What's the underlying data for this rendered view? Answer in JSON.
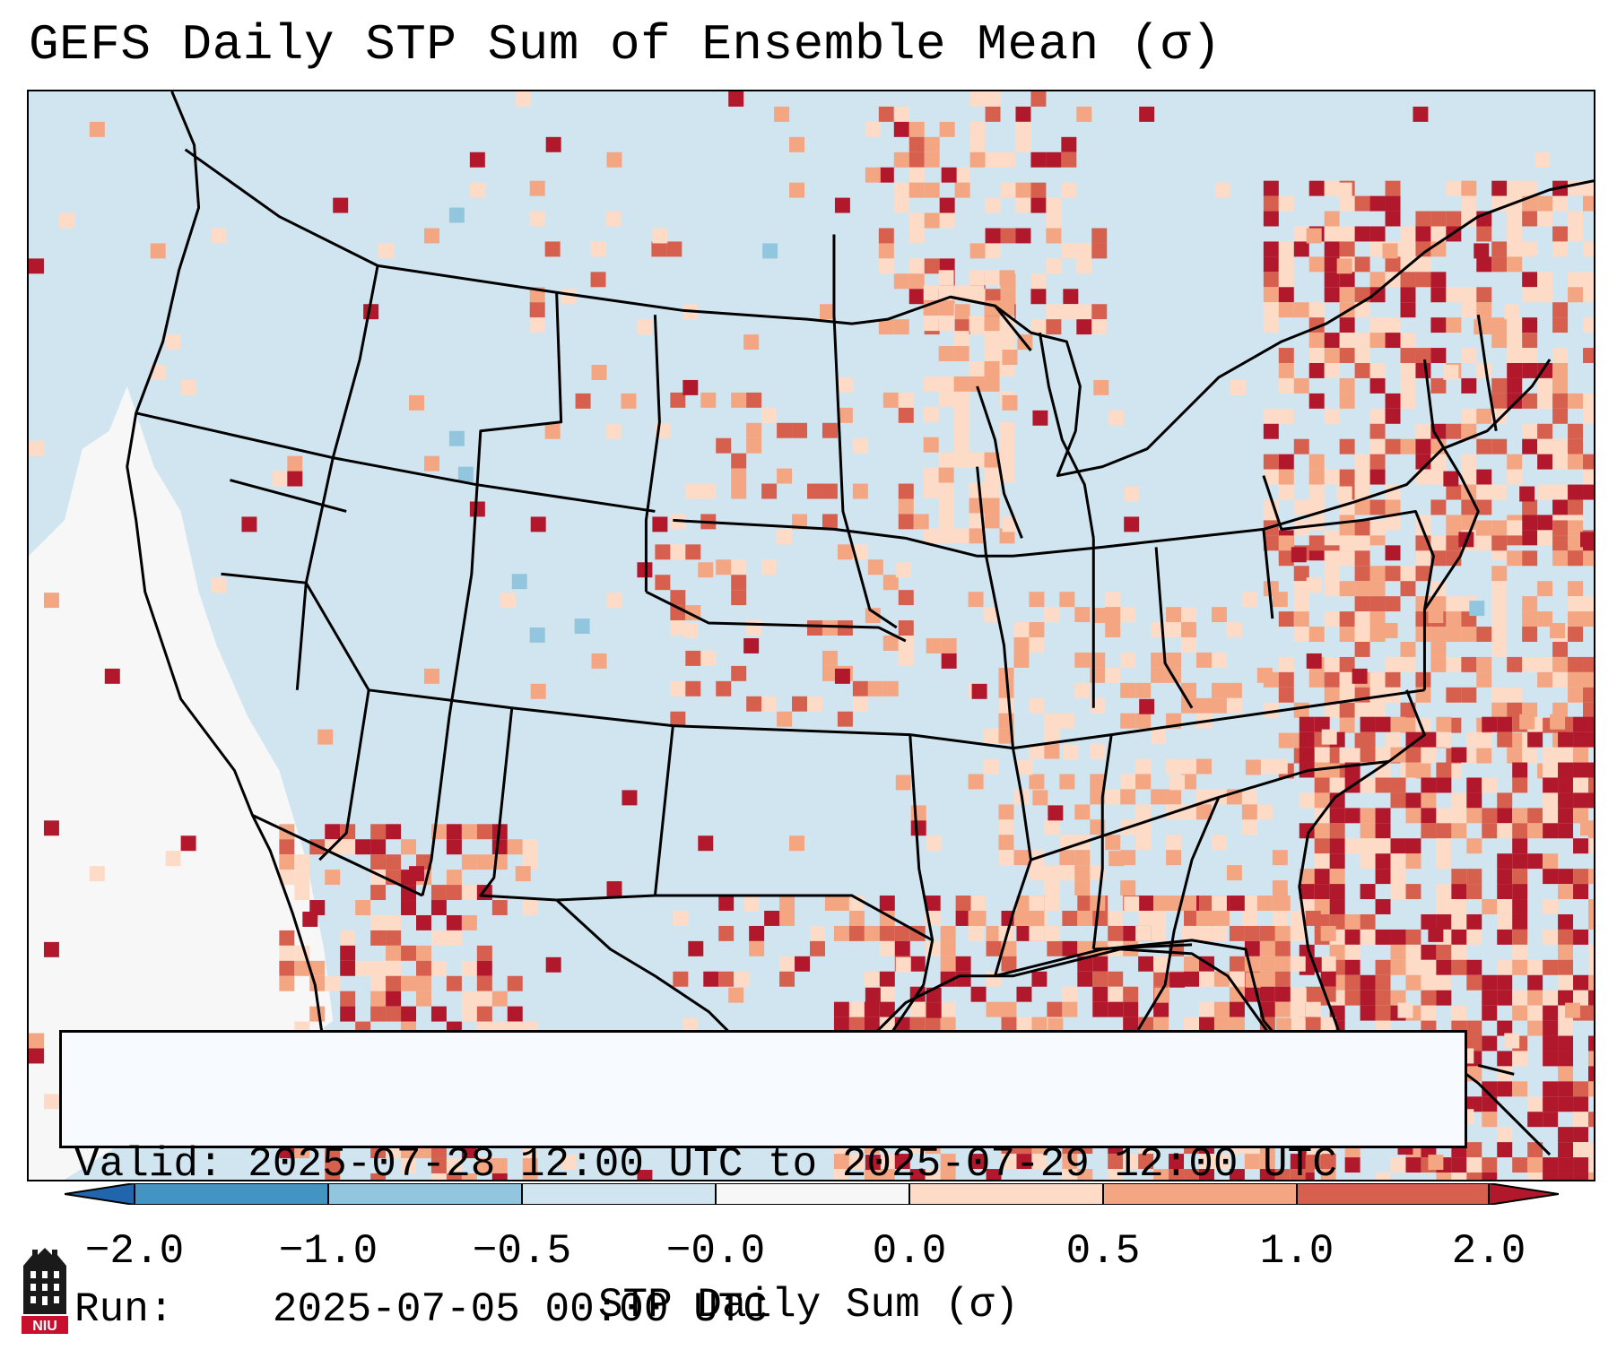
{
  "title": "GEFS Daily STP Sum of Ensemble Mean (σ)",
  "info": {
    "valid_label": "Valid:",
    "valid_value": "2025-07-28 12:00 UTC to 2025-07-29 12:00 UTC",
    "run_label": "Run:",
    "run_value": "2025-07-05 00:00 UTC"
  },
  "colorbar": {
    "label": "STP Daily Sum (σ)",
    "ticks": [
      "−2.0",
      "−1.0",
      "−0.5",
      "−0.0",
      "0.0",
      "0.5",
      "1.0",
      "2.0"
    ],
    "bins": [
      {
        "range": "<-2.0",
        "color": "#2166ac"
      },
      {
        "range": "-2.0 to -1.0",
        "color": "#4393c3"
      },
      {
        "range": "-1.0 to -0.5",
        "color": "#92c5de"
      },
      {
        "range": "-0.5 to -0.0",
        "color": "#d1e5f0"
      },
      {
        "range": "-0.0 to 0.0",
        "color": "#f7f7f7"
      },
      {
        "range": "0.0 to 0.5",
        "color": "#fddbc7"
      },
      {
        "range": "0.5 to 1.0",
        "color": "#f4a582"
      },
      {
        "range": "1.0 to 2.0",
        "color": "#d6604d"
      },
      {
        "range": ">2.0",
        "color": "#b2182b"
      }
    ]
  },
  "logo": {
    "text": "NIU"
  },
  "colors": {
    "background_ocean": "#d1e5f0",
    "neutral": "#f7f7f7",
    "light_red": "#fddbc7",
    "medium_red": "#f4a582",
    "red": "#d6604d",
    "dark_red": "#b2182b",
    "light_blue": "#92c5de",
    "blue": "#4393c3"
  }
}
